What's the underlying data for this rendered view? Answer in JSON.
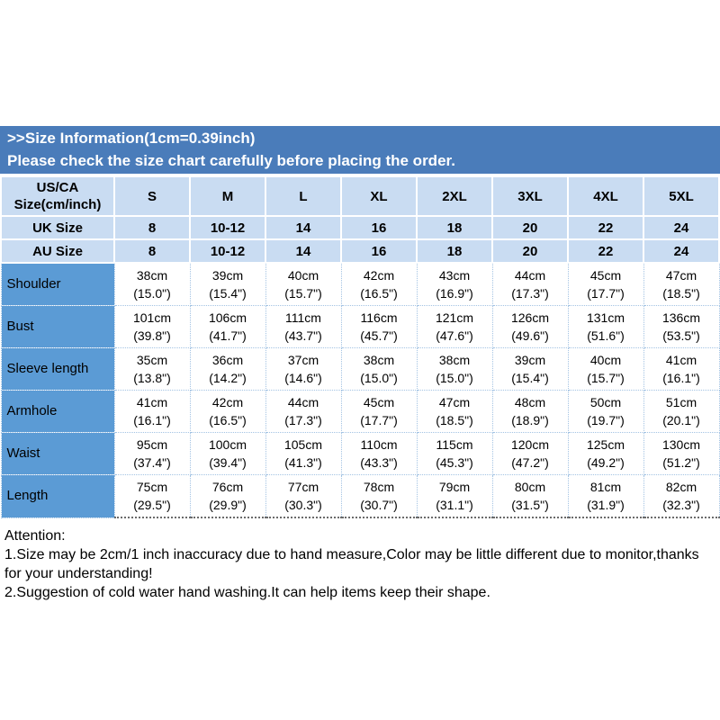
{
  "banner": {
    "line1": ">>Size Information(1cm=0.39inch)",
    "line2": "Please check the size chart carefully before placing the order."
  },
  "table": {
    "corner_line1": "US/CA",
    "corner_line2": "Size(cm/inch)",
    "sizes": [
      "S",
      "M",
      "L",
      "XL",
      "2XL",
      "3XL",
      "4XL",
      "5XL"
    ],
    "uk": {
      "label": "UK Size",
      "values": [
        "8",
        "10-12",
        "14",
        "16",
        "18",
        "20",
        "22",
        "24"
      ]
    },
    "au": {
      "label": "AU Size",
      "values": [
        "8",
        "10-12",
        "14",
        "16",
        "18",
        "20",
        "22",
        "24"
      ]
    },
    "meas": [
      {
        "label": "Shoulder",
        "cm": [
          "38cm",
          "39cm",
          "40cm",
          "42cm",
          "43cm",
          "44cm",
          "45cm",
          "47cm"
        ],
        "in": [
          "(15.0\")",
          "(15.4\")",
          "(15.7\")",
          "(16.5\")",
          "(16.9\")",
          "(17.3\")",
          "(17.7\")",
          "(18.5\")"
        ]
      },
      {
        "label": "Bust",
        "cm": [
          "101cm",
          "106cm",
          "111cm",
          "116cm",
          "121cm",
          "126cm",
          "131cm",
          "136cm"
        ],
        "in": [
          "(39.8\")",
          "(41.7\")",
          "(43.7\")",
          "(45.7\")",
          "(47.6\")",
          "(49.6\")",
          "(51.6\")",
          "(53.5\")"
        ]
      },
      {
        "label": "Sleeve length",
        "cm": [
          "35cm",
          "36cm",
          "37cm",
          "38cm",
          "38cm",
          "39cm",
          "40cm",
          "41cm"
        ],
        "in": [
          "(13.8\")",
          "(14.2\")",
          "(14.6\")",
          "(15.0\")",
          "(15.0\")",
          "(15.4\")",
          "(15.7\")",
          "(16.1\")"
        ]
      },
      {
        "label": "Armhole",
        "cm": [
          "41cm",
          "42cm",
          "44cm",
          "45cm",
          "47cm",
          "48cm",
          "50cm",
          "51cm"
        ],
        "in": [
          "(16.1\")",
          "(16.5\")",
          "(17.3\")",
          "(17.7\")",
          "(18.5\")",
          "(18.9\")",
          "(19.7\")",
          "(20.1\")"
        ]
      },
      {
        "label": "Waist",
        "cm": [
          "95cm",
          "100cm",
          "105cm",
          "110cm",
          "115cm",
          "120cm",
          "125cm",
          "130cm"
        ],
        "in": [
          "(37.4\")",
          "(39.4\")",
          "(41.3\")",
          "(43.3\")",
          "(45.3\")",
          "(47.2\")",
          "(49.2\")",
          "(51.2\")"
        ]
      },
      {
        "label": "Length",
        "cm": [
          "75cm",
          "76cm",
          "77cm",
          "78cm",
          "79cm",
          "80cm",
          "81cm",
          "82cm"
        ],
        "in": [
          "(29.5\")",
          "(29.9\")",
          "(30.3\")",
          "(30.7\")",
          "(31.1\")",
          "(31.5\")",
          "(31.9\")",
          "(32.3\")"
        ]
      }
    ]
  },
  "attention": {
    "title": "Attention:",
    "note1": "1.Size may be 2cm/1 inch inaccuracy due to hand measure,Color may be little different due to monitor,thanks for your understanding!",
    "note2": "2.Suggestion of cold water hand washing.It can help items keep their shape."
  },
  "colors": {
    "banner_bg": "#4a7cba",
    "header_bg": "#c9dcf2",
    "label_bg": "#5b9bd5",
    "cell_border": "#a3c3e3"
  }
}
